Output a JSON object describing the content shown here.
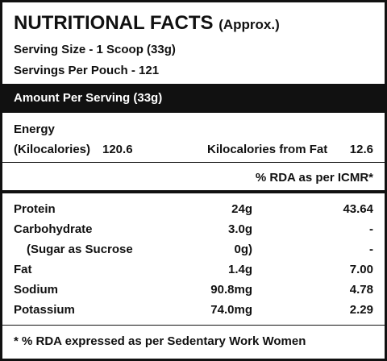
{
  "header": {
    "title": "NUTRITIONAL FACTS",
    "note": "(Approx.)"
  },
  "serving_size": "Serving Size - 1 Scoop (33g)",
  "servings_per_pouch": "Servings Per Pouch - 121",
  "amount_per_serving": "Amount Per Serving (33g)",
  "energy": {
    "label": "Energy",
    "kcal_label": "(Kilocalories)",
    "kcal_value": "120.6",
    "fat_label": "Kilocalories from Fat",
    "fat_value": "12.6"
  },
  "rda_header": "% RDA as per ICMR*",
  "table": {
    "rows": [
      [
        "Protein",
        "24g",
        "43.64"
      ],
      [
        "Carbohydrate",
        "3.0g",
        "-"
      ],
      [
        "(Sugar as Sucrose",
        "0g)",
        "-"
      ],
      [
        "Fat",
        "1.4g",
        "7.00"
      ],
      [
        "Sodium",
        "90.8mg",
        "4.78"
      ],
      [
        "Potassium",
        "74.0mg",
        "2.29"
      ]
    ]
  },
  "footnote": "* % RDA expressed as per Sedentary Work Women"
}
